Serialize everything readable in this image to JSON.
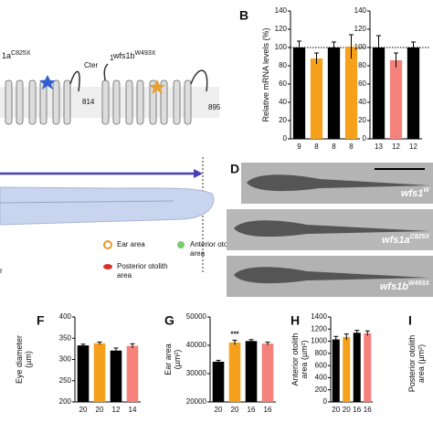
{
  "diagram": {
    "proteins": [
      {
        "name": "1a",
        "superscript": "C825X",
        "end": "814"
      },
      {
        "name": "wfs1b",
        "superscript": "W493X",
        "start": "1",
        "end": "895"
      }
    ],
    "cter_label": "Cter"
  },
  "larva": {
    "legend": [
      {
        "lines": [
          "Ear area"
        ],
        "color": "#e89a2c"
      },
      {
        "lines": [
          "Anterior otolith",
          "area"
        ],
        "color": "#79cc6e"
      },
      {
        "lines": [
          "Posterior otolith",
          "area"
        ],
        "color": "#d9302a"
      }
    ],
    "cut_label": "r"
  },
  "images": {
    "letter": "D",
    "labels": [
      {
        "name": "wfs1",
        "superscript": "W"
      },
      {
        "name": "wfs1a",
        "superscript": "C825X"
      },
      {
        "name": "wfs1b",
        "superscript": "W493X"
      }
    ]
  },
  "panel_i": {
    "letter": "I",
    "y_label": [
      "Posterior otolith",
      "area (µm²)"
    ]
  },
  "chart_data": [
    {
      "type": "bar",
      "panel": "B",
      "y_label": [
        "Relative mRNA levels (%)"
      ],
      "categories": [
        "9",
        "8",
        "8",
        "8"
      ],
      "values": [
        100,
        88,
        100,
        101
      ],
      "errors": [
        7,
        6,
        6,
        13
      ],
      "colors": [
        "#000000",
        "#f5a11c",
        "#000000",
        "#f5a11c"
      ],
      "ylim": [
        0,
        140
      ],
      "yticks": [
        0,
        20,
        40,
        60,
        80,
        100,
        120,
        140
      ],
      "reference_line": 100
    },
    {
      "type": "bar",
      "categories": [
        "13",
        "12",
        "12"
      ],
      "values": [
        100,
        86,
        100
      ],
      "errors": [
        13,
        8,
        6
      ],
      "colors": [
        "#000000",
        "#f4827a",
        "#000000"
      ],
      "ylim": [
        0,
        140
      ],
      "yticks": [
        0,
        20,
        40,
        60,
        80,
        100,
        120,
        140
      ],
      "reference_line": 100
    },
    {
      "type": "bar",
      "panel": "F",
      "y_label": [
        "Eye diameter",
        "(µm)"
      ],
      "categories": [
        "20",
        "20",
        "12",
        "14"
      ],
      "values": [
        333,
        338,
        321,
        332
      ],
      "errors": [
        3,
        3,
        6,
        5
      ],
      "colors": [
        "#000000",
        "#f5a11c",
        "#000000",
        "#f4827a"
      ],
      "ylim": [
        200,
        400
      ],
      "yticks": [
        200,
        250,
        300,
        350,
        400
      ]
    },
    {
      "type": "bar",
      "panel": "G",
      "y_label": [
        "Ear area",
        "(µm²)"
      ],
      "categories": [
        "20",
        "20",
        "16",
        "16"
      ],
      "values": [
        34200,
        41000,
        41500,
        40600
      ],
      "errors": [
        500,
        800,
        500,
        500
      ],
      "colors": [
        "#000000",
        "#f5a11c",
        "#000000",
        "#f4827a"
      ],
      "ylim": [
        20000,
        50000
      ],
      "yticks": [
        20000,
        30000,
        40000,
        50000
      ],
      "annotations": [
        {
          "bar": 1,
          "text": "***"
        }
      ]
    },
    {
      "type": "bar",
      "panel": "H",
      "y_label": [
        "Anterior otolith",
        "area (µm²)"
      ],
      "categories": [
        "20",
        "20",
        "16",
        "16"
      ],
      "values": [
        1030,
        1070,
        1140,
        1130
      ],
      "errors": [
        50,
        50,
        40,
        40
      ],
      "colors": [
        "#000000",
        "#f5a11c",
        "#000000",
        "#f4827a"
      ],
      "ylim": [
        0,
        1400
      ],
      "yticks": [
        0,
        200,
        400,
        600,
        800,
        1000,
        1200,
        1400
      ]
    }
  ]
}
